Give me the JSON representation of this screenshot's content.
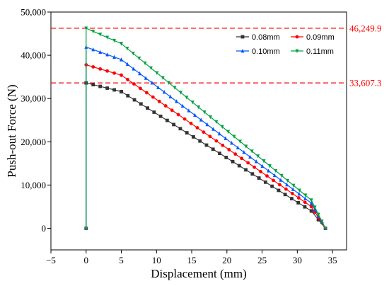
{
  "chart_data": {
    "type": "line",
    "title": "",
    "xlabel": "Displacement (mm)",
    "ylabel": "Push-out Force (N)",
    "xlim": [
      -5,
      37
    ],
    "ylim": [
      -5000,
      50000
    ],
    "x_ticks": [
      -5,
      0,
      5,
      10,
      15,
      20,
      25,
      30,
      35
    ],
    "x_tick_labels": [
      "−5",
      "0",
      "5",
      "10",
      "15",
      "20",
      "25",
      "30",
      "35"
    ],
    "y_ticks": [
      0,
      10000,
      20000,
      30000,
      40000,
      50000
    ],
    "y_tick_labels": [
      "0",
      "10,000",
      "20,000",
      "30,000",
      "40,000",
      "50,000"
    ],
    "grid": false,
    "legend_position": "top-right",
    "reference_lines": [
      {
        "y": 46249.9,
        "label": "46,249.9",
        "color": "#ff0000",
        "style": "dashed"
      },
      {
        "y": 33607.3,
        "label": "33,607.3",
        "color": "#ff0000",
        "style": "dashed"
      }
    ],
    "series": [
      {
        "name": "0.08mm",
        "color": "#333333",
        "marker": "square",
        "points": [
          [
            0,
            0
          ],
          [
            0,
            33607.3
          ],
          [
            5,
            31600
          ],
          [
            32,
            4000
          ],
          [
            33,
            2000
          ],
          [
            34,
            0
          ]
        ]
      },
      {
        "name": "0.09mm",
        "color": "#ff0000",
        "marker": "circle",
        "points": [
          [
            0,
            0
          ],
          [
            0,
            37800
          ],
          [
            5,
            35400
          ],
          [
            32,
            5000
          ],
          [
            33,
            2500
          ],
          [
            34,
            0
          ]
        ]
      },
      {
        "name": "0.10mm",
        "color": "#0055ff",
        "marker": "triangle",
        "points": [
          [
            0,
            0
          ],
          [
            0,
            41900
          ],
          [
            5,
            39000
          ],
          [
            32,
            5800
          ],
          [
            33,
            2900
          ],
          [
            34,
            0
          ]
        ]
      },
      {
        "name": "0.11mm",
        "color": "#00a040",
        "marker": "triangle-down",
        "points": [
          [
            0,
            0
          ],
          [
            0,
            46249.9
          ],
          [
            5,
            42700
          ],
          [
            32,
            6500
          ],
          [
            33,
            3200
          ],
          [
            34,
            0
          ]
        ]
      }
    ]
  }
}
